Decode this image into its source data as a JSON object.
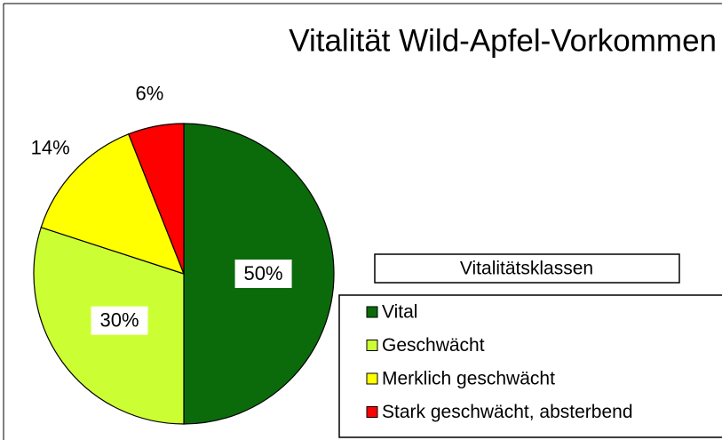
{
  "chart_data": {
    "type": "pie",
    "title": "Vitalität Wild-Apfel-Vorkommen",
    "categories": [
      "Vital",
      "Geschwächt",
      "Merklich geschwächt",
      "Stark geschwächt, absterbend"
    ],
    "values": [
      50,
      30,
      14,
      6
    ],
    "value_labels": [
      "50%",
      "30%",
      "14%",
      "6%"
    ],
    "colors": [
      "#0b6b0b",
      "#ccff33",
      "#ffff00",
      "#ff0000"
    ],
    "legend_title": "Vitalitätsklassen",
    "legend": "right"
  }
}
